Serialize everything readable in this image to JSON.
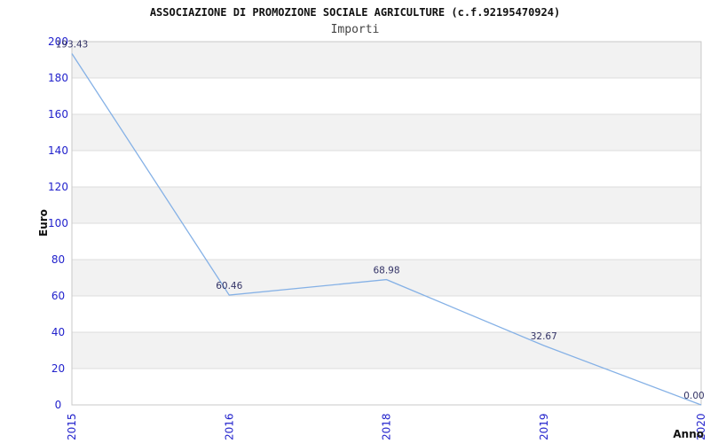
{
  "chart_data": {
    "type": "line",
    "title": "ASSOCIAZIONE DI PROMOZIONE SOCIALE AGRICULTURE (c.f.92195470924)",
    "subtitle": "Importi",
    "xlabel": "Anno",
    "ylabel": "Euro",
    "categories": [
      "2015",
      "2016",
      "2018",
      "2019",
      "2020"
    ],
    "values": [
      193.43,
      60.46,
      68.98,
      32.67,
      0
    ],
    "value_labels": [
      "193.43",
      "60.46",
      "68.98",
      "32.67",
      "0.00"
    ],
    "ylim": [
      0,
      200
    ],
    "ytick_step": 20,
    "grid": true,
    "background_bands": true,
    "legend_position": "none",
    "colors": {
      "line": "#85b1e6",
      "tick_label": "#2222cc",
      "data_label": "#333366",
      "band": "#f2f2f2",
      "gridline": "#dcdcdc",
      "border": "#c8c8c8",
      "axis_title": "#111111",
      "background": "#ffffff"
    }
  }
}
